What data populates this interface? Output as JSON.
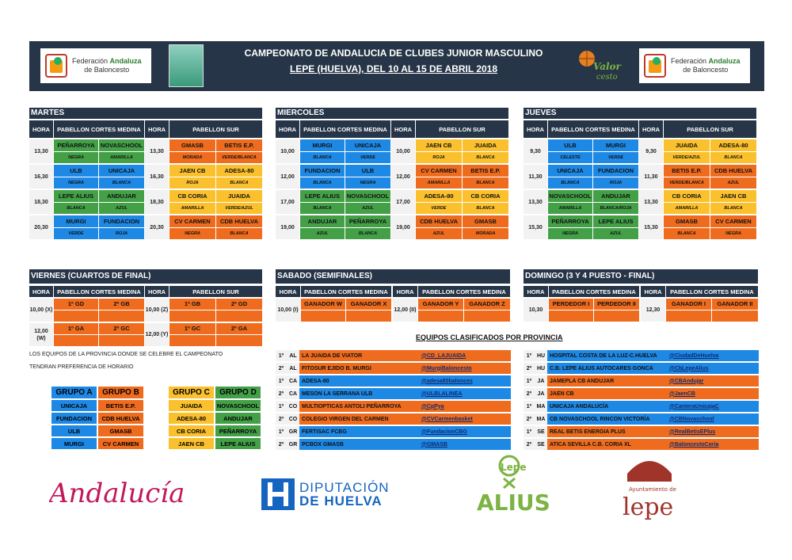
{
  "header": {
    "title": "CAMPEONATO DE ANDALUCIA DE CLUBES JUNIOR MASCULINO",
    "subtitle": "LEPE (HUELVA), DEL 10 AL 15 DE ABRIL 2018",
    "fed1": "Federación",
    "fed2": "Andaluza",
    "fed3": "de Baloncesto",
    "valor": "Valor cesto"
  },
  "labels": {
    "hora": "HORA",
    "pcm": "PABELLON CORTES MEDINA",
    "ps": "PABELLON SUR"
  },
  "martes": {
    "title": "MARTES",
    "rows": [
      {
        "t1": "13,30",
        "a": "PEÑARROYA",
        "as": "NEGRA",
        "ac": "g",
        "b": "NOVASCHOOL",
        "bs": "AMARILLA",
        "bc": "g",
        "t2": "13,30",
        "c": "GMASB",
        "cs": "MORADA",
        "cc": "o",
        "d": "BETIS E.P.",
        "ds": "VERDE/BLANCA",
        "dc": "o"
      },
      {
        "t1": "16,30",
        "a": "ULB",
        "as": "NEGRA",
        "ac": "b",
        "b": "UNICAJA",
        "bs": "BLANCA",
        "bc": "b",
        "t2": "16,30",
        "c": "JAEN CB",
        "cs": "ROJA",
        "cc": "y",
        "d": "ADESA-80",
        "ds": "BLANCA",
        "dc": "y"
      },
      {
        "t1": "18,30",
        "a": "LEPE ALIUS",
        "as": "BLANCA",
        "ac": "g",
        "b": "ANDUJAR",
        "bs": "AZUL",
        "bc": "g",
        "t2": "18,30",
        "c": "CB CORIA",
        "cs": "AMARILLA",
        "cc": "y",
        "d": "JUAIDA",
        "ds": "VERDE/AZUL",
        "dc": "y"
      },
      {
        "t1": "20,30",
        "a": "MURGI",
        "as": "VERDE",
        "ac": "b",
        "b": "FUNDACION",
        "bs": "ROJA",
        "bc": "b",
        "t2": "20,30",
        "c": "CV CARMEN",
        "cs": "NEGRA",
        "cc": "o",
        "d": "CDB HUELVA",
        "ds": "BLANCA",
        "dc": "o"
      }
    ]
  },
  "miercoles": {
    "title": "MIERCOLES",
    "rows": [
      {
        "t1": "10,00",
        "a": "MURGI",
        "as": "BLANCA",
        "ac": "b",
        "b": "UNICAJA",
        "bs": "VERDE",
        "bc": "b",
        "t2": "10,00",
        "c": "JAEN CB",
        "cs": "ROJA",
        "cc": "y",
        "d": "JUAIDA",
        "ds": "BLANCA",
        "dc": "y"
      },
      {
        "t1": "12,00",
        "a": "FUNDACION",
        "as": "BLANCA",
        "ac": "b",
        "b": "ULB",
        "bs": "NEGRA",
        "bc": "b",
        "t2": "12,00",
        "c": "CV CARMEN",
        "cs": "AMARILLA",
        "cc": "o",
        "d": "BETIS E.P.",
        "ds": "BLANCA",
        "dc": "o"
      },
      {
        "t1": "17,00",
        "a": "LEPE ALIUS",
        "as": "BLANCA",
        "ac": "g",
        "b": "NOVASCHOOL",
        "bs": "AZUL",
        "bc": "g",
        "t2": "17,00",
        "c": "ADESA-80",
        "cs": "VERDE",
        "cc": "y",
        "d": "CB CORIA",
        "ds": "BLANCA",
        "dc": "y"
      },
      {
        "t1": "19,00",
        "a": "ANDUJAR",
        "as": "AZUL",
        "ac": "g",
        "b": "PEÑARROYA",
        "bs": "BLANCA",
        "bc": "g",
        "t2": "19,00",
        "c": "CDB HUELVA",
        "cs": "AZUL",
        "cc": "o",
        "d": "GMASB",
        "ds": "MORADA",
        "dc": "o"
      }
    ]
  },
  "jueves": {
    "title": "JUEVES",
    "rows": [
      {
        "t1": "9,30",
        "a": "ULB",
        "as": "CELESTE",
        "ac": "b",
        "b": "MURGI",
        "bs": "VERDE",
        "bc": "b",
        "t2": "9,30",
        "c": "JUAIDA",
        "cs": "VERDE/AZUL",
        "cc": "y",
        "d": "ADESA-80",
        "ds": "BLANCA",
        "dc": "y"
      },
      {
        "t1": "11,30",
        "a": "UNICAJA",
        "as": "BLANCA",
        "ac": "b",
        "b": "FUNDACION",
        "bs": "ROJA",
        "bc": "b",
        "t2": "11,30",
        "c": "BETIS E.P.",
        "cs": "VERDE/BLANCA",
        "cc": "o",
        "d": "CDB HUELVA",
        "ds": "AZUL",
        "dc": "o"
      },
      {
        "t1": "13,30",
        "a": "NOVASCHOOL",
        "as": "AMARILLA",
        "ac": "g",
        "b": "ANDUJAR",
        "bs": "BLANCA/ROJA",
        "bc": "g",
        "t2": "13,30",
        "c": "CB CORIA",
        "cs": "AMARILLA",
        "cc": "y",
        "d": "JAEN CB",
        "ds": "BLANCA",
        "dc": "y"
      },
      {
        "t1": "15,30",
        "a": "PEÑARROYA",
        "as": "NEGRA",
        "ac": "g",
        "b": "LEPE ALIUS",
        "bs": "AZUL",
        "bc": "g",
        "t2": "15,30",
        "c": "GMASB",
        "cs": "BLANCA",
        "cc": "o",
        "d": "CV CARMEN",
        "ds": "NEGRA",
        "dc": "o"
      }
    ]
  },
  "viernes": {
    "title": "VIERNES (CUARTOS DE FINAL)",
    "rows": [
      {
        "t1": "10,00 (X)",
        "a": "1º GD",
        "b": "2º GB",
        "ac": "o",
        "t2": "10,00 (Z)",
        "c": "1º GB",
        "d": "2º GD",
        "cc": "o"
      },
      {
        "t1": "12,00 (W)",
        "a": "1º GA",
        "b": "2º GC",
        "ac": "o",
        "t2": "12,00 (Y)",
        "c": "1º GC",
        "d": "2º GA",
        "cc": "o"
      }
    ]
  },
  "sabado": {
    "title": "SABADO (SEMIFINALES)",
    "t1": "10,00 (I)",
    "a": "GANADOR W",
    "b": "GANADOR X",
    "t2": "12,00 (II)",
    "c": "GANADOR Y",
    "d": "GANADOR Z"
  },
  "domingo": {
    "title": "DOMINGO (3 Y 4 PUESTO - FINAL)",
    "t1": "10,30",
    "a": "PERDEDOR I",
    "b": "PERDEDOR II",
    "t2": "12,30",
    "c": "GANADOR I",
    "d": "GANADOR II"
  },
  "note1": "LOS EQUIPOS DE LA PROVINCIA DONDE SE CELEBRE EL CAMPEONATO",
  "note2": "TENDRAN PREFERENCIA DE HORARIO",
  "groups": [
    {
      "h": "GRUPO A",
      "c": "b",
      "items": [
        "UNICAJA",
        "FUNDACION",
        "ULB",
        "MURGI"
      ]
    },
    {
      "h": "GRUPO B",
      "c": "o",
      "items": [
        "BETIS E.P.",
        "CDB HUELVA",
        "GMASB",
        "CV CARMEN"
      ]
    },
    {
      "h": "GRUPO C",
      "c": "y",
      "items": [
        "JUAIDA",
        "ADESA-80",
        "CB CORIA",
        "JAEN CB"
      ]
    },
    {
      "h": "GRUPO D",
      "c": "g",
      "items": [
        "NOVASCHOOL",
        "ANDUJAR",
        "PEÑARROYA",
        "LEPE ALIUS"
      ]
    }
  ],
  "prov_title": "EQUIPOS CLASIFICADOS POR PROVINCIA",
  "prov_left": [
    {
      "p": "1º",
      "c": "AL",
      "n": "LA JUAIDA DE VIATOR",
      "t": "@CD_LAJUAIDA"
    },
    {
      "p": "2º",
      "c": "AL",
      "n": "FITOSUR EJIDO B. MURGI",
      "t": "@MurgiBaloncesto"
    },
    {
      "p": "1º",
      "c": "CA",
      "n": "ADESA-80",
      "t": "@adesa80balonces"
    },
    {
      "p": "2º",
      "c": "CA",
      "n": "MESON LA SERRANA ULB",
      "t": "@ULBLALINEA"
    },
    {
      "p": "1º",
      "c": "CO",
      "n": "MULTIOPTICAS ANTOLI PEÑARROYA",
      "t": "@CpPya"
    },
    {
      "p": "2º",
      "c": "CO",
      "n": "COLEGIO VIRGEN DEL CARMEN",
      "t": "@CVCarmenbasket"
    },
    {
      "p": "1º",
      "c": "GR",
      "n": "FERTISAC FCBG",
      "t": "@FundacionCBG"
    },
    {
      "p": "2º",
      "c": "GR",
      "n": "PCBOX GMASB",
      "t": "@GMASB"
    }
  ],
  "prov_right": [
    {
      "p": "1º",
      "c": "HU",
      "n": "HOSPITAL COSTA DE LA LUZ-C.HUELVA",
      "t": "@CiudadDeHuelva"
    },
    {
      "p": "2º",
      "c": "HU",
      "n": "C.B. LEPE ALIUS AUTOCARES GONCA",
      "t": "@CbLepeAlius"
    },
    {
      "p": "1º",
      "c": "JA",
      "n": "JAMEPLA CB ANDUJAR",
      "t": "@CBAndujar"
    },
    {
      "p": "2º",
      "c": "JA",
      "n": "JAEN CB",
      "t": "@JaenCB"
    },
    {
      "p": "1º",
      "c": "MA",
      "n": "UNICAJA ANDALUCÍA",
      "t": "@CanteraUnicajaC"
    },
    {
      "p": "2º",
      "c": "MA",
      "n": "CB NOVASCHOOL RINCON VICTORÍA",
      "t": "@CBNovaschool"
    },
    {
      "p": "1º",
      "c": "SE",
      "n": "REAL BETIS ENERGIA PLUS",
      "t": "@RealBetisEPlus"
    },
    {
      "p": "2º",
      "c": "SE",
      "n": "ATICA SEVILLA C.B. CORIA XL",
      "t": "@BaloncestoCoria"
    }
  ],
  "prov_left_colors": [
    "o",
    "o",
    "b",
    "b",
    "o",
    "o",
    "b",
    "b"
  ],
  "prov_right_colors": [
    "b",
    "b",
    "o",
    "o",
    "b",
    "b",
    "o",
    "o"
  ],
  "footer": {
    "andalucia": "Andalucía",
    "dip1": "DIPUTACIÓN",
    "dip2": "DE HUELVA",
    "lepe": "Lepe",
    "alius": "ALIUS",
    "ayto": "Ayuntamiento de",
    "lepe2": "lepe"
  }
}
